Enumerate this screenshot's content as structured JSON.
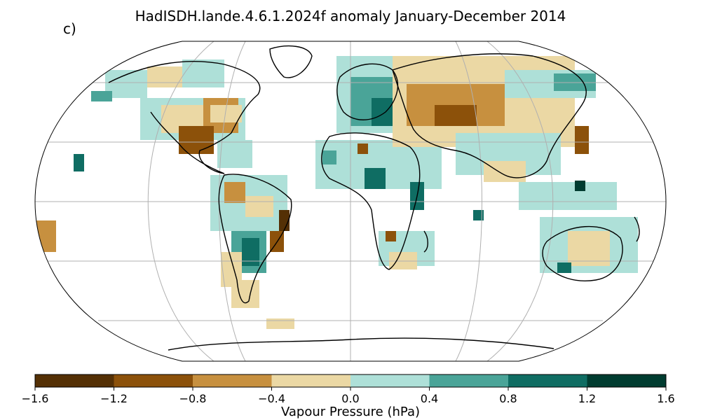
{
  "title": "HadISDH.lande.4.6.1.2024f anomaly January-December 2014",
  "panel_label": "c)",
  "colorbar": {
    "label": "Vapour Pressure (hPa)",
    "ticks": [
      "−1.6",
      "−1.2",
      "−0.8",
      "−0.4",
      "0.0",
      "0.4",
      "0.8",
      "1.2",
      "1.6"
    ],
    "colors": [
      "#543005",
      "#8c510a",
      "#c7903f",
      "#ebd8a4",
      "#aee0d8",
      "#4aa498",
      "#0f6d63",
      "#003c30"
    ]
  },
  "map": {
    "projection": "Robinson",
    "gridlines": true,
    "coastlines": true
  }
}
